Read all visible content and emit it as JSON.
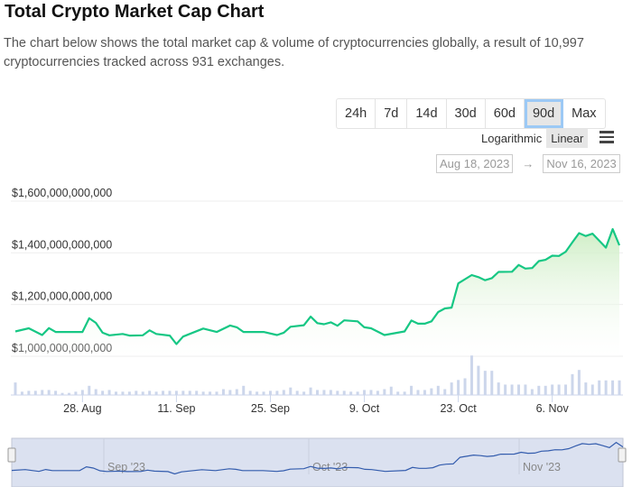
{
  "header": {
    "title": "Total Crypto Market Cap Chart",
    "description": "The chart below shows the total market cap & volume of cryptocurrencies globally, a result of 10,997 cryptocurrencies tracked across 931 exchanges."
  },
  "controls": {
    "ranges": [
      "24h",
      "7d",
      "14d",
      "30d",
      "60d",
      "90d",
      "Max"
    ],
    "active_range": "90d",
    "scales": [
      "Logarithmic",
      "Linear"
    ],
    "active_scale": "Linear",
    "menu_icon": "hamburger-menu-icon",
    "date_from": "Aug 18, 2023",
    "date_arrow": "→",
    "date_to": "Nov 16, 2023"
  },
  "chart_data": {
    "type": "area",
    "title": "",
    "ylabel": "",
    "xlabel": "",
    "ylim": [
      1000000000000,
      1600000000000
    ],
    "yticks": [
      "$1,000,000,000,000",
      "$1,200,000,000,000",
      "$1,400,000,000,000",
      "$1,600,000,000,000"
    ],
    "ytick_values": [
      1000000000000,
      1200000000000,
      1400000000000,
      1600000000000
    ],
    "xticks": [
      "28. Aug",
      "11. Sep",
      "25. Sep",
      "9. Oct",
      "23. Oct",
      "6. Nov"
    ],
    "xtick_days_since_start": [
      10,
      24,
      38,
      52,
      66,
      80
    ],
    "start_date": "2023-08-18",
    "grid": true,
    "line_color": "#16c784",
    "volume_color": "#ccd6eb",
    "market_cap_trillions": [
      [
        0,
        1.096
      ],
      [
        2,
        1.108
      ],
      [
        4,
        1.082
      ],
      [
        5,
        1.109
      ],
      [
        6,
        1.094
      ],
      [
        10,
        1.094
      ],
      [
        11,
        1.147
      ],
      [
        12,
        1.129
      ],
      [
        13,
        1.091
      ],
      [
        14,
        1.081
      ],
      [
        16,
        1.086
      ],
      [
        17,
        1.08
      ],
      [
        19,
        1.081
      ],
      [
        20,
        1.1
      ],
      [
        21,
        1.086
      ],
      [
        23,
        1.08
      ],
      [
        24,
        1.047
      ],
      [
        25,
        1.076
      ],
      [
        28,
        1.107
      ],
      [
        30,
        1.094
      ],
      [
        32,
        1.119
      ],
      [
        33,
        1.112
      ],
      [
        34,
        1.094
      ],
      [
        37,
        1.094
      ],
      [
        39,
        1.082
      ],
      [
        40,
        1.091
      ],
      [
        41,
        1.114
      ],
      [
        43,
        1.12
      ],
      [
        44,
        1.153
      ],
      [
        45,
        1.128
      ],
      [
        46,
        1.124
      ],
      [
        47,
        1.131
      ],
      [
        48,
        1.118
      ],
      [
        49,
        1.139
      ],
      [
        51,
        1.135
      ],
      [
        52,
        1.112
      ],
      [
        53,
        1.108
      ],
      [
        55,
        1.082
      ],
      [
        58,
        1.096
      ],
      [
        59,
        1.138
      ],
      [
        60,
        1.126
      ],
      [
        61,
        1.126
      ],
      [
        62,
        1.135
      ],
      [
        63,
        1.171
      ],
      [
        64,
        1.185
      ],
      [
        65,
        1.188
      ],
      [
        66,
        1.282
      ],
      [
        68,
        1.314
      ],
      [
        69,
        1.306
      ],
      [
        70,
        1.294
      ],
      [
        71,
        1.302
      ],
      [
        72,
        1.326
      ],
      [
        74,
        1.327
      ],
      [
        75,
        1.353
      ],
      [
        76,
        1.339
      ],
      [
        77,
        1.341
      ],
      [
        78,
        1.368
      ],
      [
        79,
        1.373
      ],
      [
        80,
        1.389
      ],
      [
        81,
        1.388
      ],
      [
        82,
        1.404
      ],
      [
        83,
        1.441
      ],
      [
        84,
        1.476
      ],
      [
        85,
        1.465
      ],
      [
        86,
        1.474
      ],
      [
        87,
        1.447
      ],
      [
        88,
        1.42
      ],
      [
        89,
        1.492
      ],
      [
        90,
        1.429
      ]
    ],
    "volume_relative": [
      30,
      8,
      10,
      10,
      12,
      12,
      10,
      5,
      5,
      8,
      12,
      22,
      14,
      10,
      12,
      8,
      8,
      8,
      10,
      8,
      10,
      8,
      10,
      10,
      10,
      10,
      10,
      10,
      8,
      8,
      8,
      14,
      12,
      14,
      22,
      10,
      8,
      8,
      10,
      10,
      12,
      18,
      10,
      8,
      18,
      12,
      12,
      12,
      10,
      10,
      8,
      8,
      12,
      12,
      10,
      14,
      20,
      8,
      8,
      22,
      12,
      12,
      16,
      22,
      14,
      30,
      36,
      40,
      95,
      70,
      58,
      58,
      30,
      25,
      25,
      25,
      25,
      14,
      22,
      22,
      25,
      25,
      25,
      50,
      60,
      30,
      25,
      35,
      35,
      35,
      35
    ]
  },
  "navigator": {
    "labels": [
      "Sep '23",
      "Oct '23",
      "Nov '23"
    ]
  }
}
